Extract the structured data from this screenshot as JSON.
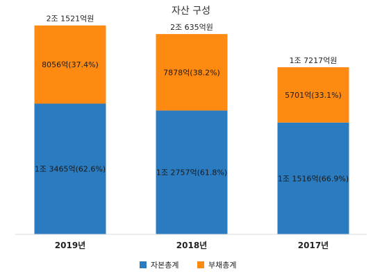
{
  "chart_data": {
    "type": "bar",
    "stacked": true,
    "title": "자산 구성",
    "categories": [
      "2019년",
      "2018년",
      "2017년"
    ],
    "series": [
      {
        "name": "자본총계",
        "color": "#2a7bbf",
        "values": [
          13465,
          12757,
          11516
        ],
        "labels": [
          "1조 3465억(62.6%)",
          "1조 2757억(61.8%)",
          "1조 1516억(66.9%)"
        ]
      },
      {
        "name": "부채총계",
        "color": "#ff8a12",
        "values": [
          8056,
          7878,
          5701
        ],
        "labels": [
          "8056억(37.4%)",
          "7878억(38.2%)",
          "5701억(33.1%)"
        ]
      }
    ],
    "totals": [
      "2조 1521억원",
      "2조 635억원",
      "1조 7217억원"
    ],
    "unit": "억원",
    "ylim": [
      0,
      22000
    ],
    "grid": false,
    "legend": "bottom"
  }
}
